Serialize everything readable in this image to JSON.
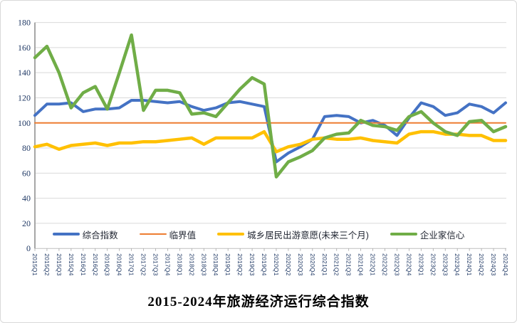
{
  "title": "2015-2024年旅游经济运行综合指数",
  "colors": {
    "composite_blue": "#4472C4",
    "threshold_orange": "#ED7D31",
    "willingness_yellow": "#FFC000",
    "confidence_green": "#70AD47",
    "gridline": "#D9D9D9",
    "axis": "#A6A6A6",
    "axis_label_text": "#1F3864"
  },
  "chart_data": {
    "type": "line",
    "title": "2015-2024年旅游经济运行综合指数",
    "xlabel": "",
    "ylabel": "",
    "ylim": [
      0,
      180
    ],
    "ytick_step": 20,
    "grid": true,
    "legend_position": "bottom-inside",
    "categories": [
      "2015Q1",
      "2015Q2",
      "2015Q3",
      "2015Q4",
      "2016Q1",
      "2016Q2",
      "2016Q3",
      "2016Q4",
      "2017Q1",
      "2017Q2",
      "2017Q3",
      "2017Q4",
      "2018Q1",
      "2018Q2",
      "2018Q3",
      "2018Q4",
      "2019Q1",
      "2019Q2",
      "2019Q3",
      "2019Q4",
      "2020Q1",
      "2020Q2",
      "2020Q3",
      "2020Q4",
      "2021Q1",
      "2021Q2",
      "2021Q3",
      "2021Q4",
      "2022Q1",
      "2022Q2",
      "2022Q3",
      "2022Q4",
      "2023Q1",
      "2023Q2",
      "2023Q3",
      "2023Q4",
      "2024Q1",
      "2024Q2",
      "2024Q3",
      "2024Q4"
    ],
    "series": [
      {
        "name": "综合指数",
        "color": "#4472C4",
        "stroke_width": 4,
        "values": [
          106,
          115,
          115,
          116,
          109,
          111,
          111,
          112,
          118,
          118,
          117,
          116,
          117,
          113,
          110,
          112,
          116,
          117,
          115,
          113,
          69,
          76,
          81,
          87,
          105,
          106,
          105,
          100,
          102,
          98,
          90,
          104,
          116,
          113,
          106,
          108,
          115,
          113,
          108,
          116
        ]
      },
      {
        "name": "临界值",
        "color": "#ED7D31",
        "stroke_width": 2,
        "values": [
          100,
          100,
          100,
          100,
          100,
          100,
          100,
          100,
          100,
          100,
          100,
          100,
          100,
          100,
          100,
          100,
          100,
          100,
          100,
          100,
          100,
          100,
          100,
          100,
          100,
          100,
          100,
          100,
          100,
          100,
          100,
          100,
          100,
          100,
          100,
          100,
          100,
          100,
          100,
          100
        ]
      },
      {
        "name": "城乡居民出游意愿(未来三个月)",
        "color": "#FFC000",
        "stroke_width": 4.5,
        "values": [
          81,
          83,
          79,
          82,
          83,
          84,
          82,
          84,
          84,
          85,
          85,
          86,
          87,
          88,
          83,
          88,
          88,
          88,
          88,
          93,
          77,
          81,
          83,
          87,
          88,
          87,
          87,
          88,
          86,
          85,
          84,
          91,
          93,
          93,
          91,
          91,
          90,
          90,
          86,
          86
        ]
      },
      {
        "name": "企业家信心",
        "color": "#70AD47",
        "stroke_width": 4.5,
        "values": [
          152,
          161,
          140,
          112,
          124,
          129,
          111,
          140,
          170,
          110,
          126,
          126,
          124,
          107,
          108,
          105,
          116,
          127,
          136,
          131,
          57,
          69,
          73,
          78,
          88,
          91,
          92,
          102,
          98,
          97,
          94,
          105,
          109,
          100,
          93,
          90,
          101,
          102,
          93,
          97
        ]
      }
    ]
  }
}
